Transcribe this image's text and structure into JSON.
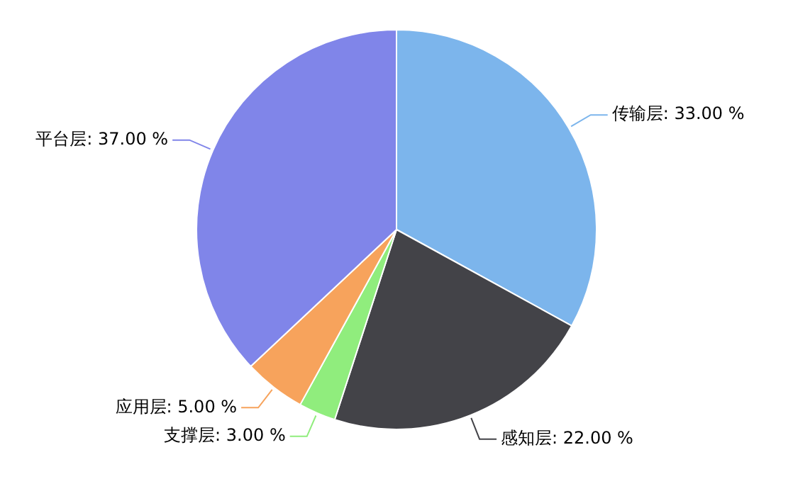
{
  "chart_data": {
    "type": "pie",
    "categories": [
      "传输层",
      "感知层",
      "支撑层",
      "应用层",
      "平台层"
    ],
    "values": [
      33,
      22,
      3,
      5,
      37
    ],
    "colors": [
      "#7cb5ec",
      "#434348",
      "#90ed7d",
      "#f7a35c",
      "#8085e9"
    ],
    "value_labels": [
      "33.00 %",
      "22.00 %",
      "3.00 %",
      "5.00 %",
      "37.00 %"
    ],
    "legend": false
  }
}
